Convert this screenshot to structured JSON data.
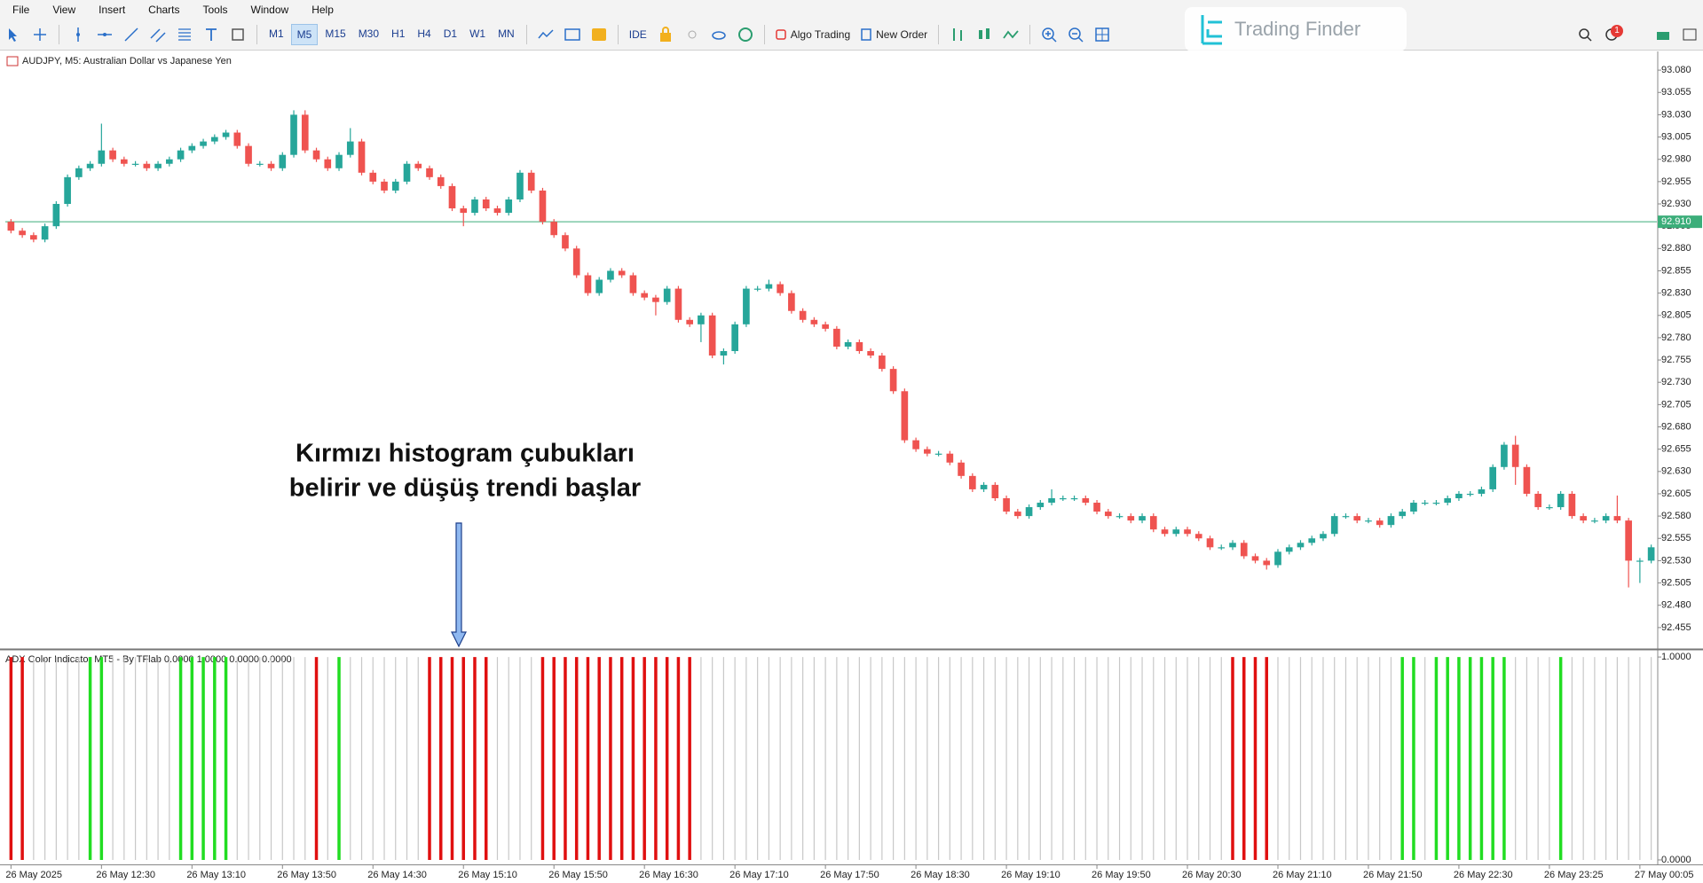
{
  "ui": {
    "menu": [
      "File",
      "View",
      "Insert",
      "Charts",
      "Tools",
      "Window",
      "Help"
    ],
    "timeframes": [
      "M1",
      "M5",
      "M15",
      "M30",
      "H1",
      "H4",
      "D1",
      "W1",
      "MN"
    ],
    "active_timeframe": "M5",
    "ide": "IDE",
    "algo_trading": "Algo Trading",
    "new_order": "New Order",
    "logo": "Trading Finder",
    "badge": 1,
    "annotation": [
      "Kırmızı histogram çubukları",
      "belirir ve düşüş trendi başlar"
    ]
  },
  "chart_data": [
    {
      "type": "candlestick",
      "title": "AUDJPY, M5: Australian Dollar vs Japanese Yen",
      "up_color": "#26a69a",
      "down_color": "#ef5350",
      "ylim": [
        92.432,
        93.099
      ],
      "yticks": [
        {
          "value": 93.08,
          "label": "93.080"
        },
        93.055,
        {
          "value": 93.03,
          "label": "93.030"
        },
        93.005,
        {
          "value": 92.98,
          "label": "92.980"
        },
        92.955,
        {
          "value": 92.93,
          "label": "92.930"
        },
        92.905,
        {
          "value": 92.88,
          "label": "92.880"
        },
        92.855,
        {
          "value": 92.83,
          "label": "92.830"
        },
        92.805,
        {
          "value": 92.78,
          "label": "92.780"
        },
        92.755,
        {
          "value": 92.73,
          "label": "92.730"
        },
        92.705,
        {
          "value": 92.68,
          "label": "92.680"
        },
        92.655,
        {
          "value": 92.63,
          "label": "92.630"
        },
        92.605,
        {
          "value": 92.58,
          "label": "92.580"
        },
        92.555,
        {
          "value": 92.53,
          "label": "92.530"
        },
        92.505,
        {
          "value": 92.48,
          "label": "92.480"
        },
        92.455
      ],
      "bid_line": {
        "value": 92.91,
        "label": "92.910"
      },
      "bid_color": "#3cae7a",
      "open": [
        92.91,
        92.9,
        92.895,
        92.89,
        92.905,
        92.93,
        92.96,
        92.97,
        92.975,
        92.99,
        92.98,
        92.975,
        92.975,
        92.97,
        92.975,
        92.98,
        92.99,
        92.995,
        93.0,
        93.005,
        93.01,
        92.995,
        92.975,
        92.975,
        92.97,
        92.985,
        93.03,
        92.99,
        92.98,
        92.97,
        92.985,
        93.0,
        92.965,
        92.955,
        92.945,
        92.955,
        92.975,
        92.97,
        92.96,
        92.95,
        92.925,
        92.92,
        92.935,
        92.925,
        92.92,
        92.935,
        92.965,
        92.945,
        92.91,
        92.895,
        92.88,
        92.85,
        92.83,
        92.845,
        92.855,
        92.85,
        92.83,
        92.825,
        92.82,
        92.835,
        92.8,
        92.795,
        92.805,
        92.76,
        92.765,
        92.795,
        92.835,
        92.835,
        92.84,
        92.83,
        92.81,
        92.8,
        92.795,
        92.79,
        92.77,
        92.775,
        92.765,
        92.76,
        92.745,
        92.72,
        92.665,
        92.655,
        92.65,
        92.65,
        92.64,
        92.625,
        92.61,
        92.615,
        92.6,
        92.585,
        92.58,
        92.59,
        92.595,
        92.6,
        92.6,
        92.6,
        92.595,
        92.585,
        92.58,
        92.58,
        92.575,
        92.58,
        92.565,
        92.56,
        92.565,
        92.56,
        92.555,
        92.545,
        92.545,
        92.55,
        92.535,
        92.53,
        92.525,
        92.54,
        92.545,
        92.55,
        92.555,
        92.56,
        92.58,
        92.58,
        92.575,
        92.575,
        92.57,
        92.58,
        92.585,
        92.595,
        92.595,
        92.595,
        92.6,
        92.605,
        92.605,
        92.61,
        92.635,
        92.66,
        92.635,
        92.605,
        92.59,
        92.59,
        92.605,
        92.58,
        92.575,
        92.575,
        92.58,
        92.575,
        92.53,
        92.53
      ],
      "high": [
        92.913,
        92.903,
        92.898,
        92.908,
        92.933,
        92.963,
        92.973,
        92.978,
        93.02,
        92.993,
        92.983,
        92.978,
        92.978,
        92.978,
        92.983,
        92.993,
        92.998,
        93.003,
        93.008,
        93.013,
        93.013,
        92.998,
        92.978,
        92.978,
        92.988,
        93.035,
        93.035,
        92.993,
        92.983,
        92.988,
        93.015,
        93.003,
        92.968,
        92.958,
        92.958,
        92.978,
        92.978,
        92.973,
        92.963,
        92.953,
        92.928,
        92.938,
        92.938,
        92.928,
        92.938,
        92.968,
        92.968,
        92.948,
        92.913,
        92.898,
        92.883,
        92.853,
        92.848,
        92.858,
        92.858,
        92.853,
        92.833,
        92.828,
        92.838,
        92.838,
        92.803,
        92.808,
        92.808,
        92.768,
        92.798,
        92.838,
        92.838,
        92.845,
        92.843,
        92.833,
        92.813,
        92.803,
        92.798,
        92.793,
        92.778,
        92.778,
        92.768,
        92.763,
        92.748,
        92.723,
        92.668,
        92.658,
        92.653,
        92.653,
        92.643,
        92.628,
        92.618,
        92.618,
        92.603,
        92.588,
        92.593,
        92.598,
        92.61,
        92.603,
        92.603,
        92.603,
        92.598,
        92.588,
        92.583,
        92.583,
        92.583,
        92.583,
        92.568,
        92.568,
        92.568,
        92.563,
        92.558,
        92.548,
        92.553,
        92.553,
        92.538,
        92.533,
        92.543,
        92.548,
        92.553,
        92.558,
        92.563,
        92.583,
        92.583,
        92.583,
        92.578,
        92.578,
        92.583,
        92.588,
        92.598,
        92.598,
        92.598,
        92.603,
        92.608,
        92.608,
        92.613,
        92.638,
        92.663,
        92.67,
        92.638,
        92.608,
        92.593,
        92.608,
        92.608,
        92.583,
        92.578,
        92.583,
        92.603,
        92.578,
        92.533,
        92.548
      ],
      "low": [
        92.897,
        92.892,
        92.887,
        92.887,
        92.902,
        92.927,
        92.957,
        92.967,
        92.972,
        92.977,
        92.972,
        92.972,
        92.967,
        92.967,
        92.972,
        92.977,
        92.987,
        92.992,
        92.997,
        93.002,
        92.992,
        92.972,
        92.972,
        92.967,
        92.967,
        92.982,
        92.987,
        92.977,
        92.967,
        92.967,
        92.982,
        92.962,
        92.952,
        92.942,
        92.942,
        92.952,
        92.967,
        92.957,
        92.947,
        92.922,
        92.905,
        92.917,
        92.922,
        92.917,
        92.917,
        92.932,
        92.942,
        92.907,
        92.892,
        92.877,
        92.847,
        92.827,
        92.827,
        92.842,
        92.847,
        92.827,
        92.822,
        92.805,
        92.817,
        92.797,
        92.792,
        92.775,
        92.757,
        92.75,
        92.762,
        92.792,
        92.832,
        92.832,
        92.827,
        92.807,
        92.797,
        92.792,
        92.787,
        92.767,
        92.767,
        92.762,
        92.757,
        92.742,
        92.717,
        92.662,
        92.652,
        92.647,
        92.647,
        92.637,
        92.622,
        92.607,
        92.607,
        92.597,
        92.582,
        92.577,
        92.577,
        92.587,
        92.592,
        92.597,
        92.597,
        92.592,
        92.582,
        92.577,
        92.577,
        92.572,
        92.572,
        92.562,
        92.557,
        92.557,
        92.557,
        92.552,
        92.542,
        92.542,
        92.542,
        92.532,
        92.527,
        92.52,
        92.522,
        92.537,
        92.542,
        92.547,
        92.552,
        92.557,
        92.577,
        92.572,
        92.572,
        92.567,
        92.567,
        92.577,
        92.582,
        92.592,
        92.592,
        92.592,
        92.597,
        92.602,
        92.602,
        92.607,
        92.632,
        92.615,
        92.602,
        92.587,
        92.587,
        92.587,
        92.577,
        92.572,
        92.572,
        92.572,
        92.572,
        92.5,
        92.505,
        92.527
      ],
      "close": [
        92.9,
        92.895,
        92.89,
        92.905,
        92.93,
        92.96,
        92.97,
        92.975,
        92.99,
        92.98,
        92.975,
        92.975,
        92.97,
        92.975,
        92.98,
        92.99,
        92.995,
        93.0,
        93.005,
        93.01,
        92.995,
        92.975,
        92.975,
        92.97,
        92.985,
        93.03,
        92.99,
        92.98,
        92.97,
        92.985,
        93.0,
        92.965,
        92.955,
        92.945,
        92.955,
        92.975,
        92.97,
        92.96,
        92.95,
        92.925,
        92.92,
        92.935,
        92.925,
        92.92,
        92.935,
        92.965,
        92.945,
        92.91,
        92.895,
        92.88,
        92.85,
        92.83,
        92.845,
        92.855,
        92.85,
        92.83,
        92.825,
        92.82,
        92.835,
        92.8,
        92.795,
        92.805,
        92.76,
        92.765,
        92.795,
        92.835,
        92.835,
        92.84,
        92.83,
        92.81,
        92.8,
        92.795,
        92.79,
        92.77,
        92.775,
        92.765,
        92.76,
        92.745,
        92.72,
        92.665,
        92.655,
        92.65,
        92.65,
        92.64,
        92.625,
        92.61,
        92.615,
        92.6,
        92.585,
        92.58,
        92.59,
        92.595,
        92.6,
        92.6,
        92.6,
        92.595,
        92.585,
        92.58,
        92.58,
        92.575,
        92.58,
        92.565,
        92.56,
        92.565,
        92.56,
        92.555,
        92.545,
        92.545,
        92.55,
        92.535,
        92.53,
        92.525,
        92.54,
        92.545,
        92.55,
        92.555,
        92.56,
        92.58,
        92.58,
        92.575,
        92.575,
        92.57,
        92.58,
        92.585,
        92.595,
        92.595,
        92.595,
        92.6,
        92.605,
        92.605,
        92.61,
        92.635,
        92.66,
        92.635,
        92.605,
        92.59,
        92.59,
        92.605,
        92.58,
        92.575,
        92.575,
        92.58,
        92.575,
        92.53,
        92.53,
        92.545
      ]
    },
    {
      "type": "bar",
      "title": "ADX Color Indicator MT5 - By TFlab 0.0000 1.0000 0.0000 0.0000",
      "ylim": [
        -0.022,
        1.031
      ],
      "yticks": [
        {
          "value": 1,
          "label": "1.0000"
        },
        {
          "value": 0,
          "label": "0.0000"
        }
      ],
      "neutral_color": "#c8c8c8",
      "categories": [
        "26 May 2025",
        null,
        null,
        null,
        null,
        null,
        null,
        null,
        "26 May 12:30",
        null,
        null,
        null,
        null,
        null,
        null,
        null,
        "26 May 13:10",
        null,
        null,
        null,
        null,
        null,
        null,
        null,
        "26 May 13:50",
        null,
        null,
        null,
        null,
        null,
        null,
        null,
        "26 May 14:30",
        null,
        null,
        null,
        null,
        null,
        null,
        null,
        "26 May 15:10",
        null,
        null,
        null,
        null,
        null,
        null,
        null,
        "26 May 15:50",
        null,
        null,
        null,
        null,
        null,
        null,
        null,
        "26 May 16:30",
        null,
        null,
        null,
        null,
        null,
        null,
        null,
        "26 May 17:10",
        null,
        null,
        null,
        null,
        null,
        null,
        null,
        "26 May 17:50",
        null,
        null,
        null,
        null,
        null,
        null,
        null,
        "26 May 18:30",
        null,
        null,
        null,
        null,
        null,
        null,
        null,
        "26 May 19:10",
        null,
        null,
        null,
        null,
        null,
        null,
        null,
        "26 May 19:50",
        null,
        null,
        null,
        null,
        null,
        null,
        null,
        "26 May 20:30",
        null,
        null,
        null,
        null,
        null,
        null,
        null,
        "26 May 21:10",
        null,
        null,
        null,
        null,
        null,
        null,
        null,
        "26 May 21:50",
        null,
        null,
        null,
        null,
        null,
        null,
        null,
        "26 May 22:30",
        null,
        null,
        null,
        null,
        null,
        null,
        null,
        "26 May 23:25",
        null,
        null,
        null,
        null,
        null,
        null,
        null,
        "27 May 00:05",
        null
      ],
      "values": [
        1,
        1,
        1,
        1,
        1,
        1,
        1,
        1,
        1,
        1,
        1,
        1,
        1,
        1,
        1,
        1,
        1,
        1,
        1,
        1,
        1,
        1,
        1,
        1,
        1,
        1,
        1,
        1,
        1,
        1,
        1,
        1,
        1,
        1,
        1,
        1,
        1,
        1,
        1,
        1,
        1,
        1,
        1,
        1,
        1,
        1,
        1,
        1,
        1,
        1,
        1,
        1,
        1,
        1,
        1,
        1,
        1,
        1,
        1,
        1,
        1,
        1,
        1,
        1,
        1,
        1,
        1,
        1,
        1,
        1,
        1,
        1,
        1,
        1,
        1,
        1,
        1,
        1,
        1,
        1,
        1,
        1,
        1,
        1,
        1,
        1,
        1,
        1,
        1,
        1,
        1,
        1,
        1,
        1,
        1,
        1,
        1,
        1,
        1,
        1,
        1,
        1,
        1,
        1,
        1,
        1,
        1,
        1,
        1,
        1,
        1,
        1,
        1,
        1,
        1,
        1,
        1,
        1,
        1,
        1,
        1,
        1,
        1,
        1,
        1,
        1,
        1,
        1,
        1,
        1,
        1,
        1,
        1,
        1,
        1,
        1,
        1,
        1,
        1,
        1,
        1,
        1,
        1,
        1,
        1,
        1
      ],
      "colors": [
        "#e01010",
        "#e01010",
        "#c8c8c8",
        "#c8c8c8",
        "#c8c8c8",
        "#c8c8c8",
        "#c8c8c8",
        "#22dd22",
        "#22dd22",
        "#c8c8c8",
        "#c8c8c8",
        "#c8c8c8",
        "#c8c8c8",
        "#c8c8c8",
        "#c8c8c8",
        "#22dd22",
        "#22dd22",
        "#22dd22",
        "#22dd22",
        "#22dd22",
        "#c8c8c8",
        "#c8c8c8",
        "#c8c8c8",
        "#c8c8c8",
        "#c8c8c8",
        "#c8c8c8",
        "#c8c8c8",
        "#e01010",
        "#c8c8c8",
        "#22dd22",
        "#c8c8c8",
        "#c8c8c8",
        "#c8c8c8",
        "#c8c8c8",
        "#c8c8c8",
        "#c8c8c8",
        "#c8c8c8",
        "#e01010",
        "#e01010",
        "#e01010",
        "#e01010",
        "#e01010",
        "#e01010",
        "#c8c8c8",
        "#c8c8c8",
        "#c8c8c8",
        "#c8c8c8",
        "#e01010",
        "#e01010",
        "#e01010",
        "#e01010",
        "#e01010",
        "#e01010",
        "#e01010",
        "#e01010",
        "#e01010",
        "#e01010",
        "#e01010",
        "#e01010",
        "#e01010",
        "#e01010",
        "#c8c8c8",
        "#c8c8c8",
        "#c8c8c8",
        "#c8c8c8",
        "#c8c8c8",
        "#c8c8c8",
        "#c8c8c8",
        "#c8c8c8",
        "#c8c8c8",
        "#c8c8c8",
        "#c8c8c8",
        "#c8c8c8",
        "#c8c8c8",
        "#c8c8c8",
        "#c8c8c8",
        "#c8c8c8",
        "#c8c8c8",
        "#c8c8c8",
        "#c8c8c8",
        "#c8c8c8",
        "#c8c8c8",
        "#c8c8c8",
        "#c8c8c8",
        "#c8c8c8",
        "#c8c8c8",
        "#c8c8c8",
        "#c8c8c8",
        "#c8c8c8",
        "#c8c8c8",
        "#c8c8c8",
        "#c8c8c8",
        "#c8c8c8",
        "#c8c8c8",
        "#c8c8c8",
        "#c8c8c8",
        "#c8c8c8",
        "#c8c8c8",
        "#c8c8c8",
        "#c8c8c8",
        "#c8c8c8",
        "#c8c8c8",
        "#c8c8c8",
        "#c8c8c8",
        "#c8c8c8",
        "#c8c8c8",
        "#c8c8c8",
        "#c8c8c8",
        "#e01010",
        "#e01010",
        "#e01010",
        "#e01010",
        "#c8c8c8",
        "#c8c8c8",
        "#c8c8c8",
        "#c8c8c8",
        "#c8c8c8",
        "#c8c8c8",
        "#c8c8c8",
        "#c8c8c8",
        "#c8c8c8",
        "#c8c8c8",
        "#c8c8c8",
        "#22dd22",
        "#22dd22",
        "#c8c8c8",
        "#22dd22",
        "#22dd22",
        "#22dd22",
        "#22dd22",
        "#22dd22",
        "#22dd22",
        "#22dd22",
        "#c8c8c8",
        "#c8c8c8",
        "#c8c8c8",
        "#c8c8c8",
        "#22dd22",
        "#c8c8c8",
        "#c8c8c8",
        "#c8c8c8",
        "#c8c8c8",
        "#c8c8c8",
        "#c8c8c8",
        "#c8c8c8",
        "#c8c8c8"
      ]
    }
  ]
}
